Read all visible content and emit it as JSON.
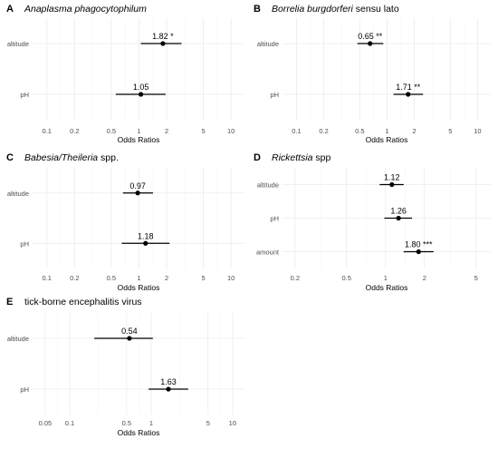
{
  "chart_data": [
    {
      "type": "forest",
      "letter": "A",
      "title_parts": [
        {
          "text": "Anaplasma phagocytophilum",
          "italic": true
        }
      ],
      "xlabel": "Odds Ratios",
      "xscale": "log",
      "xlim": [
        0.07,
        14
      ],
      "xticks": [
        0.1,
        0.2,
        0.5,
        1,
        2,
        5,
        10
      ],
      "rows": [
        {
          "label": "altitude",
          "or": 1.82,
          "lo": 1.05,
          "hi": 2.9,
          "text": "1.82 *"
        },
        {
          "label": "pH",
          "or": 1.05,
          "lo": 0.56,
          "hi": 1.95,
          "text": "1.05"
        }
      ]
    },
    {
      "type": "forest",
      "letter": "B",
      "title_parts": [
        {
          "text": "Borrelia burgdorferi",
          "italic": true
        },
        {
          "text": " sensu lato",
          "italic": false
        }
      ],
      "xlabel": "Odds Ratios",
      "xscale": "log",
      "xlim": [
        0.07,
        14
      ],
      "xticks": [
        0.1,
        0.2,
        0.5,
        1,
        2,
        5,
        10
      ],
      "rows": [
        {
          "label": "altitude",
          "or": 0.65,
          "lo": 0.47,
          "hi": 0.91,
          "text": "0.65 **"
        },
        {
          "label": "pH",
          "or": 1.71,
          "lo": 1.18,
          "hi": 2.5,
          "text": "1.71 **"
        }
      ]
    },
    {
      "type": "forest",
      "letter": "C",
      "title_parts": [
        {
          "text": "Babesia/Theileria",
          "italic": true
        },
        {
          "text": " spp.",
          "italic": false
        }
      ],
      "xlabel": "Odds Ratios",
      "xscale": "log",
      "xlim": [
        0.07,
        14
      ],
      "xticks": [
        0.1,
        0.2,
        0.5,
        1,
        2,
        5,
        10
      ],
      "rows": [
        {
          "label": "altitude",
          "or": 0.97,
          "lo": 0.67,
          "hi": 1.42,
          "text": "0.97"
        },
        {
          "label": "pH",
          "or": 1.18,
          "lo": 0.65,
          "hi": 2.15,
          "text": "1.18"
        }
      ]
    },
    {
      "type": "forest",
      "letter": "D",
      "title_parts": [
        {
          "text": "Rickettsia",
          "italic": true
        },
        {
          "text": " spp",
          "italic": false
        }
      ],
      "xlabel": "Odds Ratios",
      "xscale": "log",
      "xlim": [
        0.16,
        6.5
      ],
      "xticks": [
        0.2,
        0.5,
        1,
        2,
        5
      ],
      "rows": [
        {
          "label": "altitude",
          "or": 1.12,
          "lo": 0.9,
          "hi": 1.38,
          "text": "1.12"
        },
        {
          "label": "pH",
          "or": 1.26,
          "lo": 0.98,
          "hi": 1.6,
          "text": "1.26"
        },
        {
          "label": "amount",
          "or": 1.8,
          "lo": 1.38,
          "hi": 2.35,
          "text": "1.80 ***"
        }
      ]
    },
    {
      "type": "forest",
      "letter": "E",
      "title_parts": [
        {
          "text": "tick-borne  encephalitis virus",
          "italic": false
        }
      ],
      "xlabel": "Odds Ratios",
      "xscale": "log",
      "xlim": [
        0.035,
        14
      ],
      "xticks": [
        0.05,
        0.1,
        0.5,
        1,
        5,
        10
      ],
      "rows": [
        {
          "label": "altitude",
          "or": 0.54,
          "lo": 0.2,
          "hi": 1.05,
          "text": "0.54"
        },
        {
          "label": "pH",
          "or": 1.63,
          "lo": 0.93,
          "hi": 2.85,
          "text": "1.63"
        }
      ]
    }
  ]
}
